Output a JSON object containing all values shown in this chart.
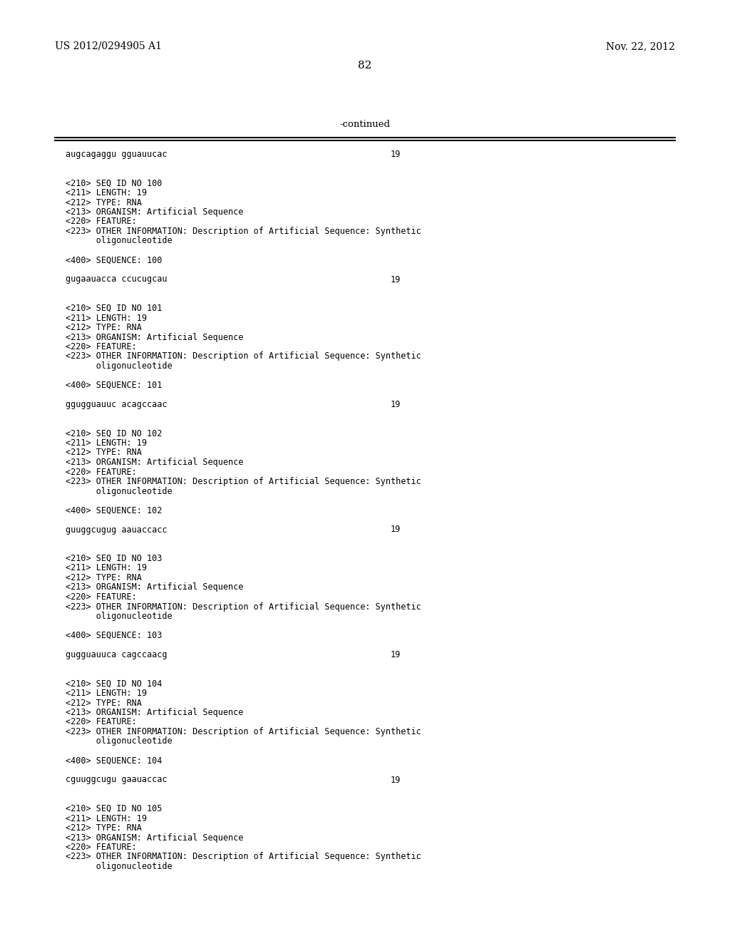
{
  "background_color": "#ffffff",
  "page_left_text": "US 2012/0294905 A1",
  "page_right_text": "Nov. 22, 2012",
  "page_number": "82",
  "continued_label": "-continued",
  "text_color": "#000000",
  "content_lines": [
    {
      "text": "augcagaggu gguauucac",
      "right_num": "19",
      "type": "sequence"
    },
    {
      "text": "",
      "type": "blank"
    },
    {
      "text": "",
      "type": "blank"
    },
    {
      "text": "<210> SEQ ID NO 100",
      "type": "meta"
    },
    {
      "text": "<211> LENGTH: 19",
      "type": "meta"
    },
    {
      "text": "<212> TYPE: RNA",
      "type": "meta"
    },
    {
      "text": "<213> ORGANISM: Artificial Sequence",
      "type": "meta"
    },
    {
      "text": "<220> FEATURE:",
      "type": "meta"
    },
    {
      "text": "<223> OTHER INFORMATION: Description of Artificial Sequence: Synthetic",
      "type": "meta"
    },
    {
      "text": "      oligonucleotide",
      "type": "meta"
    },
    {
      "text": "",
      "type": "blank"
    },
    {
      "text": "<400> SEQUENCE: 100",
      "type": "meta"
    },
    {
      "text": "",
      "type": "blank"
    },
    {
      "text": "gugaauacca ccucugcau",
      "right_num": "19",
      "type": "sequence"
    },
    {
      "text": "",
      "type": "blank"
    },
    {
      "text": "",
      "type": "blank"
    },
    {
      "text": "<210> SEQ ID NO 101",
      "type": "meta"
    },
    {
      "text": "<211> LENGTH: 19",
      "type": "meta"
    },
    {
      "text": "<212> TYPE: RNA",
      "type": "meta"
    },
    {
      "text": "<213> ORGANISM: Artificial Sequence",
      "type": "meta"
    },
    {
      "text": "<220> FEATURE:",
      "type": "meta"
    },
    {
      "text": "<223> OTHER INFORMATION: Description of Artificial Sequence: Synthetic",
      "type": "meta"
    },
    {
      "text": "      oligonucleotide",
      "type": "meta"
    },
    {
      "text": "",
      "type": "blank"
    },
    {
      "text": "<400> SEQUENCE: 101",
      "type": "meta"
    },
    {
      "text": "",
      "type": "blank"
    },
    {
      "text": "ggugguauuc acagccaac",
      "right_num": "19",
      "type": "sequence"
    },
    {
      "text": "",
      "type": "blank"
    },
    {
      "text": "",
      "type": "blank"
    },
    {
      "text": "<210> SEQ ID NO 102",
      "type": "meta"
    },
    {
      "text": "<211> LENGTH: 19",
      "type": "meta"
    },
    {
      "text": "<212> TYPE: RNA",
      "type": "meta"
    },
    {
      "text": "<213> ORGANISM: Artificial Sequence",
      "type": "meta"
    },
    {
      "text": "<220> FEATURE:",
      "type": "meta"
    },
    {
      "text": "<223> OTHER INFORMATION: Description of Artificial Sequence: Synthetic",
      "type": "meta"
    },
    {
      "text": "      oligonucleotide",
      "type": "meta"
    },
    {
      "text": "",
      "type": "blank"
    },
    {
      "text": "<400> SEQUENCE: 102",
      "type": "meta"
    },
    {
      "text": "",
      "type": "blank"
    },
    {
      "text": "guuggcugug aauaccacc",
      "right_num": "19",
      "type": "sequence"
    },
    {
      "text": "",
      "type": "blank"
    },
    {
      "text": "",
      "type": "blank"
    },
    {
      "text": "<210> SEQ ID NO 103",
      "type": "meta"
    },
    {
      "text": "<211> LENGTH: 19",
      "type": "meta"
    },
    {
      "text": "<212> TYPE: RNA",
      "type": "meta"
    },
    {
      "text": "<213> ORGANISM: Artificial Sequence",
      "type": "meta"
    },
    {
      "text": "<220> FEATURE:",
      "type": "meta"
    },
    {
      "text": "<223> OTHER INFORMATION: Description of Artificial Sequence: Synthetic",
      "type": "meta"
    },
    {
      "text": "      oligonucleotide",
      "type": "meta"
    },
    {
      "text": "",
      "type": "blank"
    },
    {
      "text": "<400> SEQUENCE: 103",
      "type": "meta"
    },
    {
      "text": "",
      "type": "blank"
    },
    {
      "text": "gugguauuca cagccaacg",
      "right_num": "19",
      "type": "sequence"
    },
    {
      "text": "",
      "type": "blank"
    },
    {
      "text": "",
      "type": "blank"
    },
    {
      "text": "<210> SEQ ID NO 104",
      "type": "meta"
    },
    {
      "text": "<211> LENGTH: 19",
      "type": "meta"
    },
    {
      "text": "<212> TYPE: RNA",
      "type": "meta"
    },
    {
      "text": "<213> ORGANISM: Artificial Sequence",
      "type": "meta"
    },
    {
      "text": "<220> FEATURE:",
      "type": "meta"
    },
    {
      "text": "<223> OTHER INFORMATION: Description of Artificial Sequence: Synthetic",
      "type": "meta"
    },
    {
      "text": "      oligonucleotide",
      "type": "meta"
    },
    {
      "text": "",
      "type": "blank"
    },
    {
      "text": "<400> SEQUENCE: 104",
      "type": "meta"
    },
    {
      "text": "",
      "type": "blank"
    },
    {
      "text": "cguuggcugu gaauaccac",
      "right_num": "19",
      "type": "sequence"
    },
    {
      "text": "",
      "type": "blank"
    },
    {
      "text": "",
      "type": "blank"
    },
    {
      "text": "<210> SEQ ID NO 105",
      "type": "meta"
    },
    {
      "text": "<211> LENGTH: 19",
      "type": "meta"
    },
    {
      "text": "<212> TYPE: RNA",
      "type": "meta"
    },
    {
      "text": "<213> ORGANISM: Artificial Sequence",
      "type": "meta"
    },
    {
      "text": "<220> FEATURE:",
      "type": "meta"
    },
    {
      "text": "<223> OTHER INFORMATION: Description of Artificial Sequence: Synthetic",
      "type": "meta"
    },
    {
      "text": "      oligonucleotide",
      "type": "meta"
    }
  ]
}
